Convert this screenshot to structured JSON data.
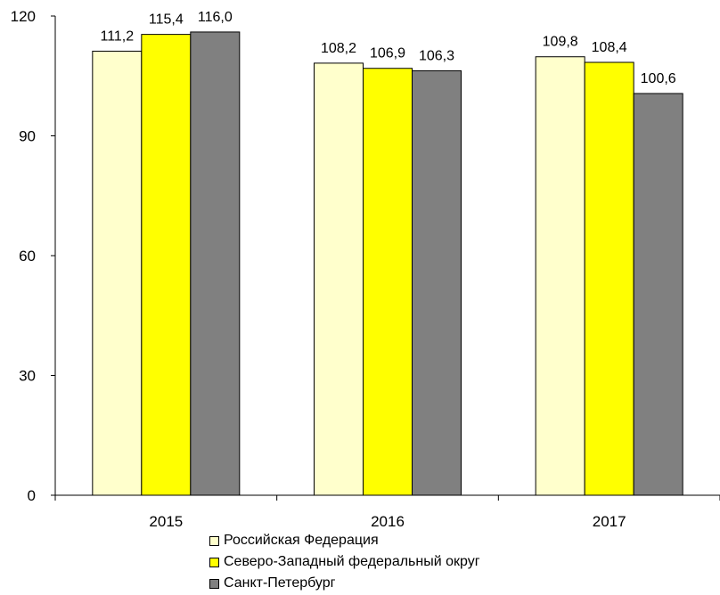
{
  "chart_data": {
    "type": "bar",
    "categories": [
      "2015",
      "2016",
      "2017"
    ],
    "series": [
      {
        "name": "Российская Федерация",
        "color": "#FFFFCC",
        "values": [
          111.2,
          108.2,
          109.8
        ],
        "labels": [
          "111,2",
          "108,2",
          "109,8"
        ]
      },
      {
        "name": "Северо-Западный федеральный округ",
        "color": "#FFFF00",
        "values": [
          115.4,
          106.9,
          108.4
        ],
        "labels": [
          "115,4",
          "106,9",
          "108,4"
        ]
      },
      {
        "name": "Санкт-Петербург",
        "color": "#808080",
        "values": [
          116.0,
          106.3,
          100.6
        ],
        "labels": [
          "116,0",
          "106,3",
          "100,6"
        ]
      }
    ],
    "yticks": [
      0,
      30,
      60,
      90,
      120
    ],
    "ylim": [
      0,
      120
    ],
    "grid": false,
    "legend_position": "bottom-center"
  }
}
